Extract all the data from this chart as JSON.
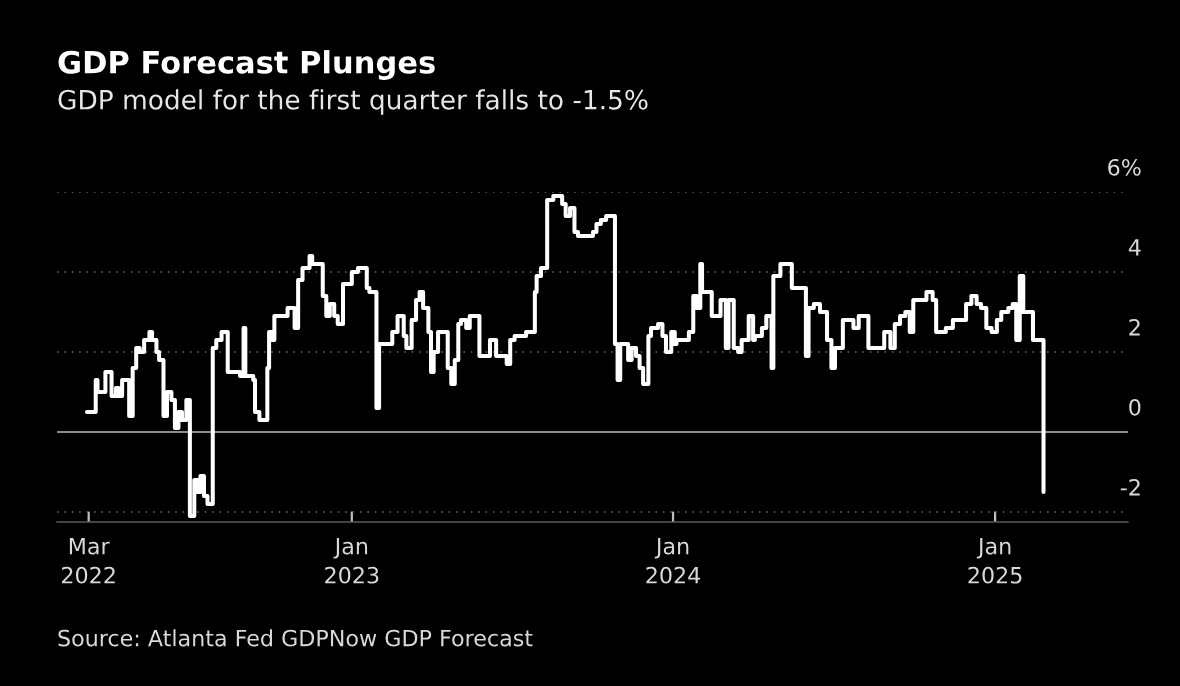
{
  "chart_data": {
    "type": "step",
    "title": "GDP Forecast Plunges",
    "subtitle": "GDP model for the first quarter falls to -1.5%",
    "annotations": [
      "Source: Atlanta Fed GDPNow GDP Forecast"
    ],
    "x": [
      "2022-03-06",
      "2022-03-16",
      "2022-03-18",
      "2022-03-27",
      "2022-04-03",
      "2022-04-08",
      "2022-04-11",
      "2022-04-15",
      "2022-04-23",
      "2022-04-27",
      "2022-05-01",
      "2022-05-05",
      "2022-05-10",
      "2022-05-16",
      "2022-05-19",
      "2022-05-24",
      "2022-05-27",
      "2022-06-01",
      "2022-06-05",
      "2022-06-10",
      "2022-06-14",
      "2022-06-18",
      "2022-06-22",
      "2022-06-27",
      "2022-07-01",
      "2022-07-06",
      "2022-07-10",
      "2022-07-13",
      "2022-07-17",
      "2022-07-21",
      "2022-07-27",
      "2022-07-31",
      "2022-08-06",
      "2022-08-13",
      "2022-08-27",
      "2022-08-31",
      "2022-09-02",
      "2022-09-11",
      "2022-09-13",
      "2022-09-18",
      "2022-09-27",
      "2022-09-29",
      "2022-10-03",
      "2022-10-05",
      "2022-10-20",
      "2022-10-28",
      "2022-11-01",
      "2022-11-06",
      "2022-11-14",
      "2022-11-17",
      "2022-11-29",
      "2022-12-03",
      "2022-12-07",
      "2022-12-12",
      "2022-12-16",
      "2022-12-22",
      "2023-01-01",
      "2023-01-08",
      "2023-01-18",
      "2023-01-21",
      "2023-01-29",
      "2023-02-01",
      "2023-02-16",
      "2023-02-22",
      "2023-03-01",
      "2023-03-04",
      "2023-03-10",
      "2023-03-15",
      "2023-03-19",
      "2023-03-23",
      "2023-03-29",
      "2023-04-01",
      "2023-04-04",
      "2023-04-09",
      "2023-04-20",
      "2023-04-24",
      "2023-04-28",
      "2023-05-02",
      "2023-05-05",
      "2023-05-11",
      "2023-05-15",
      "2023-05-26",
      "2023-06-07",
      "2023-06-14",
      "2023-06-26",
      "2023-06-30",
      "2023-07-05",
      "2023-07-18",
      "2023-07-28",
      "2023-07-30",
      "2023-08-04",
      "2023-08-11",
      "2023-08-18",
      "2023-08-28",
      "2023-09-01",
      "2023-09-06",
      "2023-09-11",
      "2023-09-15",
      "2023-10-02",
      "2023-10-06",
      "2023-10-11",
      "2023-10-17",
      "2023-10-27",
      "2023-10-30",
      "2023-11-02",
      "2023-11-11",
      "2023-11-15",
      "2023-11-20",
      "2023-11-24",
      "2023-11-28",
      "2023-12-04",
      "2023-12-07",
      "2023-12-15",
      "2023-12-20",
      "2023-12-24",
      "2023-12-30",
      "2024-01-03",
      "2024-01-05",
      "2024-01-19",
      "2024-01-24",
      "2024-01-28",
      "2024-02-01",
      "2024-02-03",
      "2024-02-14",
      "2024-02-24",
      "2024-03-01",
      "2024-03-04",
      "2024-03-10",
      "2024-03-15",
      "2024-03-19",
      "2024-03-27",
      "2024-04-01",
      "2024-04-03",
      "2024-04-11",
      "2024-04-16",
      "2024-04-22",
      "2024-04-24",
      "2024-05-02",
      "2024-05-15",
      "2024-05-31",
      "2024-06-03",
      "2024-06-09",
      "2024-06-16",
      "2024-06-24",
      "2024-06-29",
      "2024-07-03",
      "2024-07-12",
      "2024-07-24",
      "2024-07-30",
      "2024-08-10",
      "2024-08-28",
      "2024-09-04",
      "2024-09-09",
      "2024-09-15",
      "2024-09-21",
      "2024-09-26",
      "2024-09-30",
      "2024-10-15",
      "2024-10-22",
      "2024-10-26",
      "2024-11-06",
      "2024-11-14",
      "2024-11-29",
      "2024-12-05",
      "2024-12-11",
      "2024-12-16",
      "2024-12-22",
      "2024-12-28",
      "2025-01-03",
      "2025-01-08",
      "2025-01-16",
      "2025-01-21",
      "2025-01-25",
      "2025-01-29",
      "2025-02-02",
      "2025-02-13",
      "2025-02-25"
    ],
    "values": [
      0.5,
      1.3,
      1.0,
      1.5,
      0.9,
      1.1,
      0.9,
      1.3,
      0.4,
      1.6,
      2.1,
      2.0,
      2.3,
      2.5,
      2.3,
      2.0,
      1.8,
      0.4,
      1.0,
      0.8,
      0.1,
      0.5,
      0.3,
      0.8,
      -2.1,
      -1.2,
      -1.5,
      -1.1,
      -1.6,
      -1.8,
      2.1,
      2.3,
      2.5,
      1.5,
      1.4,
      2.6,
      1.4,
      1.3,
      0.5,
      0.3,
      1.6,
      2.5,
      2.3,
      2.9,
      3.1,
      2.6,
      3.8,
      4.1,
      4.4,
      4.2,
      3.4,
      2.9,
      3.2,
      2.9,
      2.7,
      3.7,
      4.0,
      4.1,
      3.6,
      3.5,
      0.6,
      2.2,
      2.5,
      2.9,
      2.4,
      2.1,
      2.8,
      3.3,
      3.5,
      3.1,
      2.5,
      1.5,
      2.0,
      2.5,
      1.6,
      1.2,
      1.8,
      2.7,
      2.8,
      2.6,
      2.9,
      1.9,
      2.3,
      1.9,
      1.7,
      2.3,
      2.4,
      2.5,
      3.5,
      3.9,
      4.1,
      5.8,
      5.9,
      5.7,
      5.4,
      5.6,
      5.0,
      4.9,
      5.0,
      5.2,
      5.3,
      5.4,
      2.2,
      1.3,
      2.2,
      1.8,
      2.1,
      1.9,
      1.6,
      1.2,
      2.4,
      2.6,
      2.7,
      2.4,
      2.0,
      2.5,
      2.2,
      2.3,
      2.5,
      3.4,
      3.1,
      4.2,
      3.5,
      2.9,
      3.3,
      2.1,
      3.3,
      2.1,
      2.0,
      2.3,
      2.9,
      2.3,
      2.4,
      2.6,
      2.9,
      1.6,
      3.9,
      4.2,
      3.6,
      1.9,
      3.1,
      3.2,
      3.0,
      2.3,
      1.6,
      2.1,
      2.8,
      2.6,
      2.9,
      2.1,
      2.5,
      2.1,
      2.7,
      2.9,
      3.0,
      2.5,
      3.3,
      3.5,
      3.3,
      2.5,
      2.6,
      2.8,
      3.2,
      3.4,
      3.2,
      3.1,
      2.6,
      2.5,
      2.8,
      3.0,
      3.1,
      3.2,
      2.3,
      3.9,
      3.0,
      2.3,
      -1.5
    ],
    "color": "#ffffff",
    "line_style": "solid",
    "xlim": [
      "2022-01-31",
      "2025-06-01"
    ],
    "xticks": [
      {
        "value": "2022-03-08",
        "label": "Mar\n2022"
      },
      {
        "value": "2023-01-01",
        "label": "Jan\n2023"
      },
      {
        "value": "2024-01-01",
        "label": "Jan\n2024"
      },
      {
        "value": "2025-01-01",
        "label": "Jan\n2025"
      }
    ],
    "ylim": [
      -2.25,
      6
    ],
    "yticks": [
      -2,
      0,
      2,
      4,
      {
        "value": 6,
        "label": "6%"
      }
    ],
    "ref_lines": [
      {
        "axis": "y",
        "value": 0,
        "color": "#8c8c8c",
        "line_style": "solid"
      }
    ],
    "grid": "y",
    "legend": false
  }
}
